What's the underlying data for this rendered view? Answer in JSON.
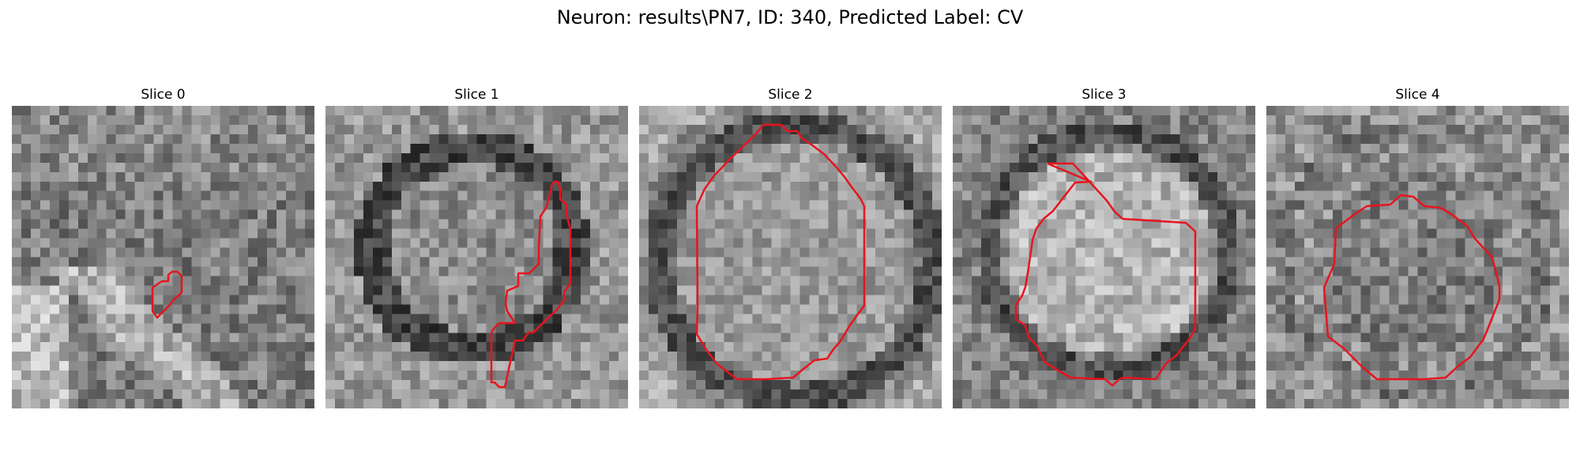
{
  "figure": {
    "title": "Neuron: results\\PN7, ID: 340, Predicted Label: CV",
    "contour_color": "#e8141e",
    "colormap": "gray",
    "slices": [
      {
        "title": "Slice 0",
        "pattern": "diagonal-band"
      },
      {
        "title": "Slice 1",
        "pattern": "dark-ring"
      },
      {
        "title": "Slice 2",
        "pattern": "light-disk-dark-rim"
      },
      {
        "title": "Slice 3",
        "pattern": "bright-disk-dark-rim"
      },
      {
        "title": "Slice 4",
        "pattern": "faint-disk"
      }
    ]
  }
}
